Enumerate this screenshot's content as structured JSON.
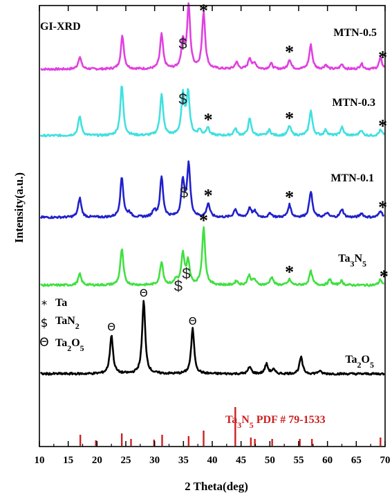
{
  "chart_data": {
    "type": "line",
    "title": "GI-XRD",
    "xlabel": "2 Theta(deg)",
    "ylabel": "Intensity(a.u.)",
    "xlim": [
      10,
      70
    ],
    "x_ticks": [
      10,
      15,
      20,
      25,
      30,
      35,
      40,
      45,
      50,
      55,
      60,
      65,
      70
    ],
    "series": [
      {
        "name": "MTN-0.5",
        "color": "#e040e0",
        "peaks": [
          [
            17.0,
            18
          ],
          [
            24.4,
            48
          ],
          [
            31.2,
            50
          ],
          [
            34.9,
            40
          ],
          [
            35.9,
            90
          ],
          [
            38.5,
            82
          ],
          [
            44.2,
            10
          ],
          [
            46.5,
            16
          ],
          [
            47.4,
            8
          ],
          [
            50.2,
            8
          ],
          [
            53.4,
            14
          ],
          [
            57.1,
            35
          ],
          [
            59.7,
            6
          ],
          [
            62.5,
            7
          ],
          [
            65.9,
            8
          ],
          [
            69.2,
            16
          ]
        ],
        "markers": [
          {
            "symbol": "*",
            "x": 38.5,
            "kind": "star"
          },
          {
            "symbol": "$",
            "x": 34.9,
            "kind": "dollar"
          },
          {
            "symbol": "*",
            "x": 53.4,
            "kind": "star"
          },
          {
            "symbol": "*",
            "x": 69.6,
            "kind": "star"
          }
        ]
      },
      {
        "name": "MTN-0.3",
        "color": "#40e0e0",
        "peaks": [
          [
            17.0,
            28
          ],
          [
            24.3,
            72
          ],
          [
            31.2,
            60
          ],
          [
            34.9,
            58
          ],
          [
            35.8,
            62
          ],
          [
            37.8,
            8
          ],
          [
            39.2,
            12
          ],
          [
            44.0,
            10
          ],
          [
            46.5,
            24
          ],
          [
            49.9,
            8
          ],
          [
            53.4,
            14
          ],
          [
            57.1,
            36
          ],
          [
            59.7,
            8
          ],
          [
            62.5,
            12
          ],
          [
            65.8,
            8
          ],
          [
            69.2,
            8
          ]
        ],
        "markers": [
          {
            "symbol": "$",
            "x": 34.9,
            "kind": "dollar"
          },
          {
            "symbol": "*",
            "x": 39.3,
            "kind": "star"
          },
          {
            "symbol": "*",
            "x": 53.4,
            "kind": "star"
          },
          {
            "symbol": "*",
            "x": 69.6,
            "kind": "star"
          }
        ]
      },
      {
        "name": "MTN-0.1",
        "color": "#2020cc",
        "peaks": [
          [
            17.0,
            28
          ],
          [
            24.3,
            58
          ],
          [
            25.6,
            6
          ],
          [
            29.9,
            10
          ],
          [
            31.2,
            58
          ],
          [
            34.9,
            52
          ],
          [
            35.9,
            76
          ],
          [
            39.3,
            20
          ],
          [
            44.0,
            12
          ],
          [
            46.5,
            14
          ],
          [
            47.4,
            8
          ],
          [
            50.1,
            6
          ],
          [
            53.4,
            18
          ],
          [
            57.1,
            38
          ],
          [
            59.9,
            6
          ],
          [
            62.5,
            12
          ],
          [
            65.9,
            6
          ],
          [
            69.2,
            10
          ]
        ],
        "markers": [
          {
            "symbol": "$",
            "x": 35.1,
            "kind": "dollar"
          },
          {
            "symbol": "*",
            "x": 39.3,
            "kind": "star"
          },
          {
            "symbol": "*",
            "x": 53.4,
            "kind": "star"
          },
          {
            "symbol": "*",
            "x": 69.6,
            "kind": "star"
          }
        ]
      },
      {
        "name": "Ta3N5",
        "label_parts": [
          "Ta",
          "3",
          "N",
          "5"
        ],
        "color": "#40e040",
        "peaks": [
          [
            17.0,
            16
          ],
          [
            24.3,
            52
          ],
          [
            31.2,
            34
          ],
          [
            33.7,
            8
          ],
          [
            34.9,
            44
          ],
          [
            35.8,
            34
          ],
          [
            38.5,
            82
          ],
          [
            44.2,
            6
          ],
          [
            46.4,
            14
          ],
          [
            47.3,
            8
          ],
          [
            50.3,
            12
          ],
          [
            53.4,
            8
          ],
          [
            57.1,
            20
          ],
          [
            60.4,
            8
          ],
          [
            62.4,
            6
          ],
          [
            69.2,
            8
          ]
        ],
        "markers": [
          {
            "symbol": "*",
            "x": 38.5,
            "kind": "star"
          },
          {
            "symbol": "$",
            "x": 34.1,
            "kind": "dollar"
          },
          {
            "symbol": "$",
            "x": 35.5,
            "kind": "dollar"
          },
          {
            "symbol": "*",
            "x": 53.4,
            "kind": "star"
          },
          {
            "symbol": "*",
            "x": 69.8,
            "kind": "star"
          }
        ]
      },
      {
        "name": "Ta2O5",
        "label_parts": [
          "Ta",
          "2",
          "O",
          "5"
        ],
        "color": "#000000",
        "peaks": [
          [
            22.5,
            56
          ],
          [
            28.1,
            105
          ],
          [
            36.6,
            65
          ],
          [
            46.5,
            10
          ],
          [
            49.4,
            14
          ],
          [
            50.6,
            6
          ],
          [
            55.4,
            24
          ],
          [
            58.6,
            4
          ]
        ],
        "markers": [
          {
            "symbol": "Θ",
            "x": 22.5,
            "kind": "theta"
          },
          {
            "symbol": "Θ",
            "x": 28.1,
            "kind": "theta"
          },
          {
            "symbol": "Θ",
            "x": 36.6,
            "kind": "theta"
          }
        ]
      }
    ],
    "reference": {
      "label_parts": [
        "Ta",
        "3",
        "N",
        "5",
        " PDF # 79-1533"
      ],
      "color": "#cc2020",
      "lines": [
        [
          17.1,
          16
        ],
        [
          19.8,
          8
        ],
        [
          24.3,
          18
        ],
        [
          25.9,
          10
        ],
        [
          29.9,
          9
        ],
        [
          31.3,
          16
        ],
        [
          35.9,
          14
        ],
        [
          38.5,
          22
        ],
        [
          44.0,
          56
        ],
        [
          46.7,
          12
        ],
        [
          47.4,
          10
        ],
        [
          50.4,
          10
        ],
        [
          55.2,
          10
        ],
        [
          57.3,
          10
        ],
        [
          69.2,
          12
        ]
      ]
    },
    "legend": [
      {
        "symbol": "*",
        "parts": [
          "Ta"
        ]
      },
      {
        "symbol": "$",
        "parts": [
          "TaN",
          "2"
        ]
      },
      {
        "symbol": "Θ",
        "parts": [
          "Ta",
          "2",
          "O",
          "5"
        ]
      }
    ],
    "grid": false,
    "legend_placement": "left"
  }
}
